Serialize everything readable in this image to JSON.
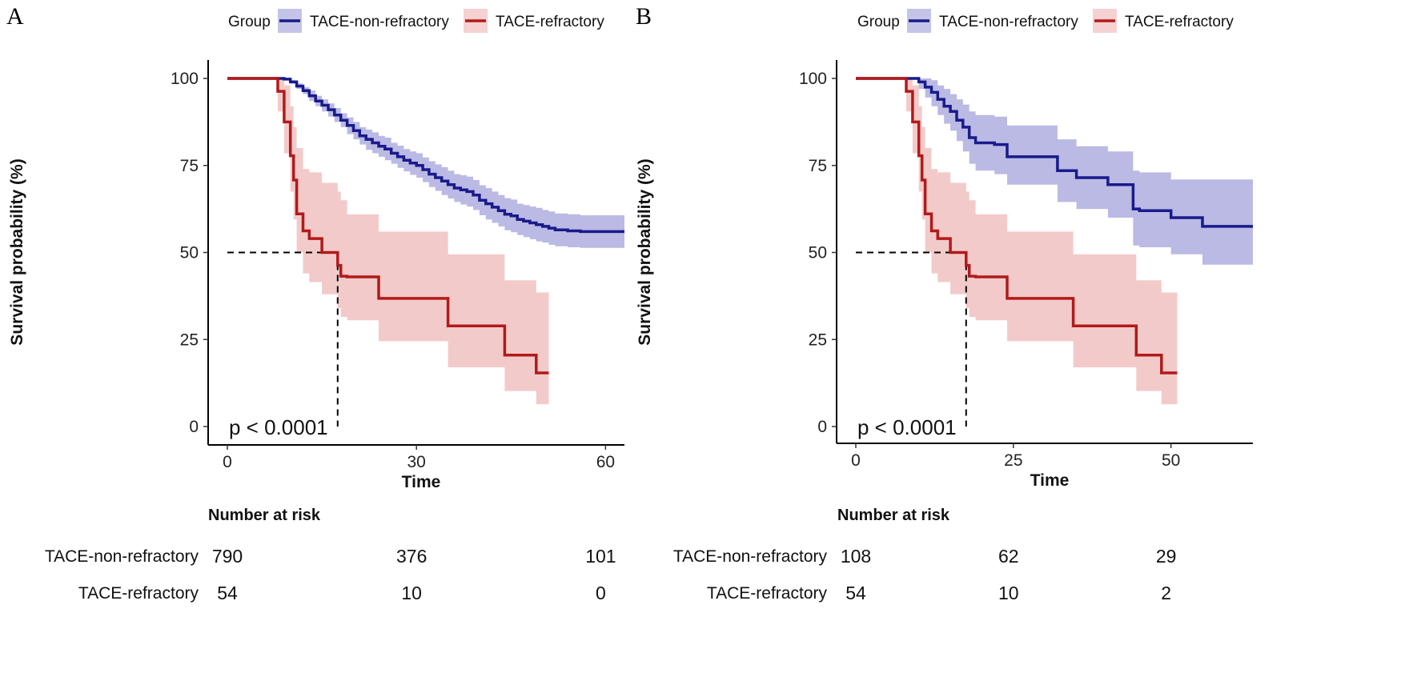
{
  "chart_data": [
    {
      "type": "line",
      "subtype": "kaplan-meier",
      "panel": "A",
      "legend_title": "Group",
      "xlabel": "Time",
      "ylabel": "Survival probability (%)",
      "xlim": [
        0,
        63
      ],
      "ylim": [
        0,
        100
      ],
      "xticks": [
        0,
        30,
        60
      ],
      "yticks": [
        0,
        25,
        50,
        75,
        100
      ],
      "pvalue": "p < 0.0001",
      "median_line": {
        "x": 17.5,
        "y": 50
      },
      "series": [
        {
          "name": "TACE-non-refractory",
          "color": "#1a1a8c",
          "ci_color": "#9d9dd9",
          "x": [
            0,
            9,
            10,
            11,
            12,
            13,
            14,
            15,
            16,
            17,
            18,
            19,
            20,
            21,
            22,
            23,
            24,
            25,
            26,
            27,
            28,
            29,
            30,
            31,
            32,
            33,
            34,
            35,
            36,
            37,
            38,
            39,
            40,
            41,
            42,
            43,
            44,
            45,
            46,
            47,
            48,
            49,
            50,
            51,
            52,
            54,
            56,
            63
          ],
          "values": [
            100,
            99.8,
            99,
            97.8,
            96.5,
            95,
            93.5,
            92.3,
            91,
            89.5,
            88,
            86.5,
            85,
            83.5,
            82.5,
            81.5,
            80.5,
            79.7,
            78.5,
            77.5,
            76.5,
            75.7,
            75,
            73.8,
            72.5,
            71.5,
            70.5,
            69.5,
            68.5,
            68,
            67.5,
            66.5,
            65,
            64,
            63,
            62,
            61,
            60.5,
            59.5,
            59,
            58.5,
            58,
            57.5,
            57,
            56.5,
            56.2,
            56,
            56
          ],
          "ci_lower": [
            100,
            99.5,
            98.5,
            97,
            95.5,
            93.5,
            92,
            90.5,
            89,
            87.5,
            86,
            84,
            82.5,
            81,
            79.5,
            78.5,
            77.5,
            76.5,
            75.5,
            74.3,
            73.3,
            72.3,
            71.5,
            70.2,
            68.8,
            67.7,
            66.5,
            65.5,
            64.5,
            63.8,
            63.2,
            62.2,
            60.7,
            59.5,
            58.5,
            57.5,
            56.4,
            55.8,
            55,
            54.4,
            53.8,
            53.2,
            52.8,
            52.2,
            51.8,
            51.5,
            51.3,
            51.3
          ],
          "ci_upper": [
            100,
            100,
            99.5,
            98.6,
            97.5,
            96.5,
            95,
            94,
            92.8,
            91.5,
            90,
            88.8,
            87.5,
            86,
            85.3,
            84.5,
            83.5,
            83,
            81.5,
            80.7,
            79.7,
            79,
            78.5,
            77.3,
            76.2,
            75.3,
            74.5,
            73.5,
            72.5,
            72.2,
            71.8,
            70.8,
            69.3,
            68.5,
            67.5,
            66.5,
            65.6,
            65.2,
            64,
            63.6,
            63.2,
            62.8,
            62.2,
            61.8,
            61.2,
            61,
            60.7,
            60.7
          ]
        },
        {
          "name": "TACE-refractory",
          "color": "#b21a1a",
          "ci_color": "#eeb3b3",
          "x": [
            0,
            8,
            9,
            10,
            10.5,
            11,
            12,
            13,
            15,
            17.5,
            18,
            19,
            24,
            35,
            44,
            49,
            51
          ],
          "values": [
            100,
            96.3,
            87.5,
            77.8,
            70.8,
            61.1,
            56.2,
            54,
            50,
            46.3,
            43.2,
            43,
            36.8,
            28.9,
            20.5,
            15.4,
            15.4
          ],
          "ci_lower": [
            100,
            90.5,
            78.5,
            67.5,
            59.5,
            50,
            44,
            41.5,
            38,
            34,
            31.5,
            30.5,
            24.5,
            17,
            10.2,
            6.4,
            6.4
          ],
          "ci_upper": [
            100,
            100,
            98,
            92,
            86,
            80,
            74,
            73,
            70,
            67.5,
            65,
            61,
            56,
            49.5,
            42,
            38.5,
            38.5
          ]
        }
      ],
      "risk_table": {
        "title": "Number at risk",
        "rows": [
          {
            "label": "TACE-non-refractory",
            "values": [
              "790",
              "376",
              "101"
            ]
          },
          {
            "label": "TACE-refractory",
            "values": [
              "54",
              "10",
              "0"
            ]
          }
        ]
      }
    },
    {
      "type": "line",
      "subtype": "kaplan-meier",
      "panel": "B",
      "legend_title": "Group",
      "xlabel": "Time",
      "ylabel": "Survival probability (%)",
      "xlim": [
        0,
        63
      ],
      "ylim": [
        0,
        100
      ],
      "xticks": [
        0,
        25,
        50
      ],
      "yticks": [
        0,
        25,
        50,
        75,
        100
      ],
      "pvalue": "p < 0.0001",
      "median_line": {
        "x": 17.5,
        "y": 50
      },
      "series": [
        {
          "name": "TACE-non-refractory",
          "color": "#1a1a8c",
          "ci_color": "#9d9dd9",
          "x": [
            0,
            10,
            11,
            12,
            13,
            14,
            15,
            16,
            17,
            18,
            19,
            22,
            24,
            32,
            35,
            40,
            44,
            45,
            50,
            55,
            63
          ],
          "values": [
            100,
            99,
            97.5,
            96,
            94,
            92,
            90.5,
            88,
            86,
            83,
            81.5,
            81,
            77.5,
            73.5,
            71.5,
            69.5,
            62.5,
            62,
            60,
            57.5,
            57.5
          ],
          "ci_lower": [
            100,
            97,
            94.5,
            92,
            89.5,
            87,
            85,
            82,
            79,
            75.5,
            73.5,
            72.5,
            69.5,
            64.5,
            62.5,
            60,
            52,
            51.5,
            49.5,
            46.5,
            46.5
          ],
          "ci_upper": [
            100,
            100,
            100,
            99.5,
            98,
            97,
            95.5,
            94,
            92.5,
            90.5,
            89.5,
            89,
            86.5,
            82.5,
            80.5,
            79,
            73.5,
            73,
            71,
            71,
            71
          ]
        },
        {
          "name": "TACE-refractory",
          "color": "#b21a1a",
          "ci_color": "#eeb3b3",
          "x": [
            0,
            8,
            9,
            10,
            10.5,
            11,
            12,
            13,
            15,
            17.5,
            18,
            19,
            24,
            34.5,
            44.5,
            48.5,
            51
          ],
          "values": [
            100,
            96.3,
            87.5,
            77.8,
            70.8,
            61.1,
            56.2,
            54,
            50,
            46.3,
            43.2,
            43,
            36.8,
            28.9,
            20.5,
            15.4,
            15.4
          ],
          "ci_lower": [
            100,
            90.5,
            78.5,
            67.5,
            59.5,
            50,
            44,
            41.5,
            38,
            34,
            31.5,
            30.5,
            24.5,
            17,
            10.2,
            6.4,
            6.4
          ],
          "ci_upper": [
            100,
            100,
            98,
            92,
            86,
            80,
            74,
            73,
            70,
            67.5,
            65,
            61,
            56,
            49.5,
            42,
            38.5,
            38.5
          ]
        }
      ],
      "risk_table": {
        "title": "Number at risk",
        "rows": [
          {
            "label": "TACE-non-refractory",
            "values": [
              "108",
              "62",
              "29"
            ]
          },
          {
            "label": "TACE-refractory",
            "values": [
              "54",
              "10",
              "2"
            ]
          }
        ]
      }
    }
  ]
}
